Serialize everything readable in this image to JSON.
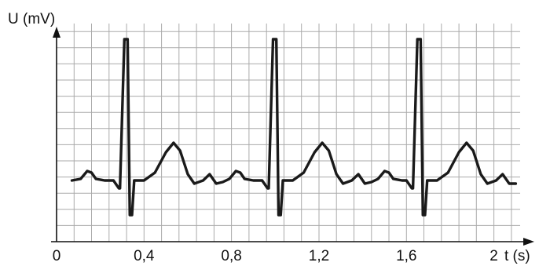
{
  "chart_data": {
    "type": "line",
    "xlabel": "t (s)",
    "ylabel": "U (mV)",
    "x_ticks": [
      "0",
      "0,4",
      "0,8",
      "1,2",
      "1,6",
      "2"
    ],
    "x_tick_values": [
      0,
      0.4,
      0.8,
      1.2,
      1.6,
      2.0
    ],
    "xlim": [
      0,
      2.12
    ],
    "grid": true,
    "series": [
      {
        "values": [
          {
            "t": 0.07,
            "u": 0.8
          },
          {
            "t": 0.11,
            "u": 0.9
          },
          {
            "t": 0.14,
            "u": 1.4
          },
          {
            "t": 0.16,
            "u": 1.3
          },
          {
            "t": 0.18,
            "u": 0.9
          },
          {
            "t": 0.22,
            "u": 0.8
          },
          {
            "t": 0.26,
            "u": 0.8
          },
          {
            "t": 0.285,
            "u": 0.3
          },
          {
            "t": 0.29,
            "u": 0.3
          },
          {
            "t": 0.31,
            "u": 9.8
          },
          {
            "t": 0.325,
            "u": 9.8
          },
          {
            "t": 0.335,
            "u": -1.4
          },
          {
            "t": 0.345,
            "u": -1.4
          },
          {
            "t": 0.355,
            "u": 0.8
          },
          {
            "t": 0.4,
            "u": 0.8
          },
          {
            "t": 0.45,
            "u": 1.3
          },
          {
            "t": 0.5,
            "u": 2.6
          },
          {
            "t": 0.535,
            "u": 3.2
          },
          {
            "t": 0.565,
            "u": 2.7
          },
          {
            "t": 0.6,
            "u": 1.2
          },
          {
            "t": 0.63,
            "u": 0.6
          },
          {
            "t": 0.67,
            "u": 0.8
          },
          {
            "t": 0.7,
            "u": 1.2
          },
          {
            "t": 0.73,
            "u": 0.6
          },
          {
            "t": 0.76,
            "u": 0.7
          },
          {
            "t": 0.79,
            "u": 0.9
          },
          {
            "t": 0.82,
            "u": 1.4
          },
          {
            "t": 0.84,
            "u": 1.3
          },
          {
            "t": 0.86,
            "u": 0.9
          },
          {
            "t": 0.9,
            "u": 0.8
          },
          {
            "t": 0.94,
            "u": 0.8
          },
          {
            "t": 0.965,
            "u": 0.3
          },
          {
            "t": 0.97,
            "u": 0.3
          },
          {
            "t": 0.99,
            "u": 9.8
          },
          {
            "t": 1.005,
            "u": 9.8
          },
          {
            "t": 1.015,
            "u": -1.4
          },
          {
            "t": 1.025,
            "u": -1.4
          },
          {
            "t": 1.035,
            "u": 0.8
          },
          {
            "t": 1.08,
            "u": 0.8
          },
          {
            "t": 1.13,
            "u": 1.3
          },
          {
            "t": 1.18,
            "u": 2.6
          },
          {
            "t": 1.215,
            "u": 3.2
          },
          {
            "t": 1.245,
            "u": 2.7
          },
          {
            "t": 1.28,
            "u": 1.2
          },
          {
            "t": 1.31,
            "u": 0.6
          },
          {
            "t": 1.35,
            "u": 0.8
          },
          {
            "t": 1.38,
            "u": 1.2
          },
          {
            "t": 1.41,
            "u": 0.6
          },
          {
            "t": 1.44,
            "u": 0.7
          },
          {
            "t": 1.47,
            "u": 0.9
          },
          {
            "t": 1.5,
            "u": 1.4
          },
          {
            "t": 1.52,
            "u": 1.3
          },
          {
            "t": 1.54,
            "u": 0.9
          },
          {
            "t": 1.58,
            "u": 0.8
          },
          {
            "t": 1.6,
            "u": 0.8
          },
          {
            "t": 1.625,
            "u": 0.3
          },
          {
            "t": 1.63,
            "u": 0.3
          },
          {
            "t": 1.65,
            "u": 9.8
          },
          {
            "t": 1.665,
            "u": 9.8
          },
          {
            "t": 1.675,
            "u": -1.4
          },
          {
            "t": 1.685,
            "u": -1.4
          },
          {
            "t": 1.695,
            "u": 0.8
          },
          {
            "t": 1.74,
            "u": 0.8
          },
          {
            "t": 1.79,
            "u": 1.3
          },
          {
            "t": 1.84,
            "u": 2.6
          },
          {
            "t": 1.875,
            "u": 3.2
          },
          {
            "t": 1.905,
            "u": 2.7
          },
          {
            "t": 1.94,
            "u": 1.2
          },
          {
            "t": 1.97,
            "u": 0.6
          },
          {
            "t": 2.01,
            "u": 0.8
          },
          {
            "t": 2.04,
            "u": 1.2
          },
          {
            "t": 2.07,
            "u": 0.6
          },
          {
            "t": 2.1,
            "u": 0.6
          }
        ]
      }
    ]
  }
}
